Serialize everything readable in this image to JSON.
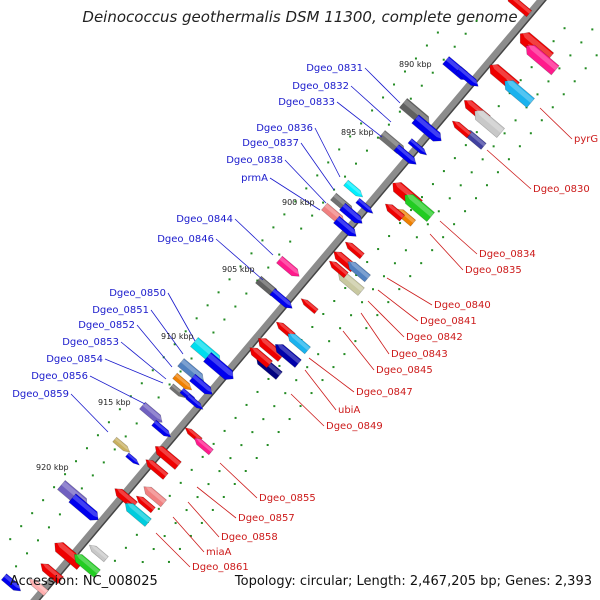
{
  "title": "Deinococcus geothermalis DSM 11300, complete genome",
  "footer": {
    "accession": "Accession: NC_008025",
    "summary": "Topology: circular; Length: 2,467,205 bp; Genes: 2,393"
  },
  "colors": {
    "backbone": "#8c8c8c",
    "label_forward": "#1a1acc",
    "label_reverse": "#cc1a1a",
    "tick": "#228b22"
  },
  "scale_labels": [
    "890 kbp",
    "895 kbp",
    "900 kbp",
    "905 kbp",
    "910 kbp",
    "915 kbp",
    "920 kbp"
  ],
  "forward_labels": [
    "Dgeo_0831",
    "Dgeo_0832",
    "Dgeo_0833",
    "Dgeo_0836",
    "Dgeo_0837",
    "Dgeo_0838",
    "prmA",
    "Dgeo_0844",
    "Dgeo_0846",
    "Dgeo_0850",
    "Dgeo_0851",
    "Dgeo_0852",
    "Dgeo_0853",
    "Dgeo_0854",
    "Dgeo_0856",
    "Dgeo_0859"
  ],
  "reverse_labels": [
    "pyrG",
    "Dgeo_0830",
    "Dgeo_0834",
    "Dgeo_0835",
    "Dgeo_0840",
    "Dgeo_0841",
    "Dgeo_0842",
    "Dgeo_0843",
    "Dgeo_0845",
    "Dgeo_0847",
    "ubiA",
    "Dgeo_0849",
    "Dgeo_0855",
    "Dgeo_0857",
    "Dgeo_0858",
    "miaA",
    "Dgeo_0861"
  ]
}
